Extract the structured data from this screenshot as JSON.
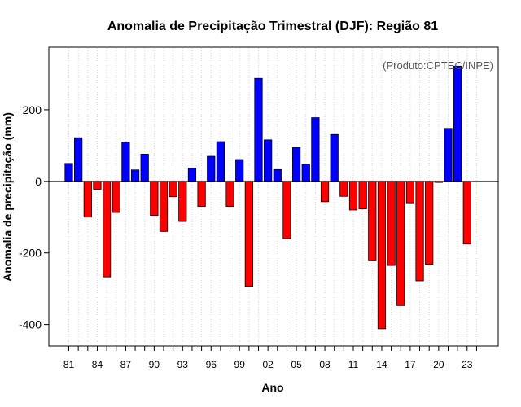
{
  "chart_data": {
    "type": "bar",
    "title": "Anomalia de Precipitação Trimestral (DJF): Região 81",
    "xlabel": "Ano",
    "ylabel": "Anomalia de precipitação (mm)",
    "annotation": "(Produto:CPTEC/INPE)",
    "ylim": [
      -460,
      375
    ],
    "y_ticks": [
      -400,
      -200,
      0,
      200
    ],
    "x_tick_labels": [
      "81",
      "84",
      "87",
      "90",
      "93",
      "96",
      "99",
      "02",
      "05",
      "08",
      "11",
      "14",
      "17",
      "20",
      "23"
    ],
    "x_tick_every": 3,
    "grid": "vertical dotted",
    "categories": [
      "1981",
      "1982",
      "1983",
      "1984",
      "1985",
      "1986",
      "1987",
      "1988",
      "1989",
      "1990",
      "1991",
      "1992",
      "1993",
      "1994",
      "1995",
      "1996",
      "1997",
      "1998",
      "1999",
      "2000",
      "2001",
      "2002",
      "2003",
      "2004",
      "2005",
      "2006",
      "2007",
      "2008",
      "2009",
      "2010",
      "2011",
      "2012",
      "2013",
      "2014",
      "2015",
      "2016",
      "2017",
      "2018",
      "2019",
      "2020",
      "2021",
      "2022",
      "2023"
    ],
    "values": [
      50,
      122,
      -100,
      -22,
      -267,
      -87,
      110,
      32,
      76,
      -95,
      -140,
      -43,
      -112,
      37,
      -70,
      70,
      111,
      -70,
      61,
      -293,
      288,
      116,
      33,
      -160,
      95,
      48,
      178,
      -57,
      131,
      -42,
      -80,
      -77,
      -222,
      -412,
      -235,
      -347,
      -60,
      -278,
      -232,
      -3,
      148,
      322,
      -175
    ],
    "colors": {
      "positive": "#0000ff",
      "negative": "#ff0000",
      "zero_line": "#000000",
      "grid": "#d3d3d3"
    }
  }
}
